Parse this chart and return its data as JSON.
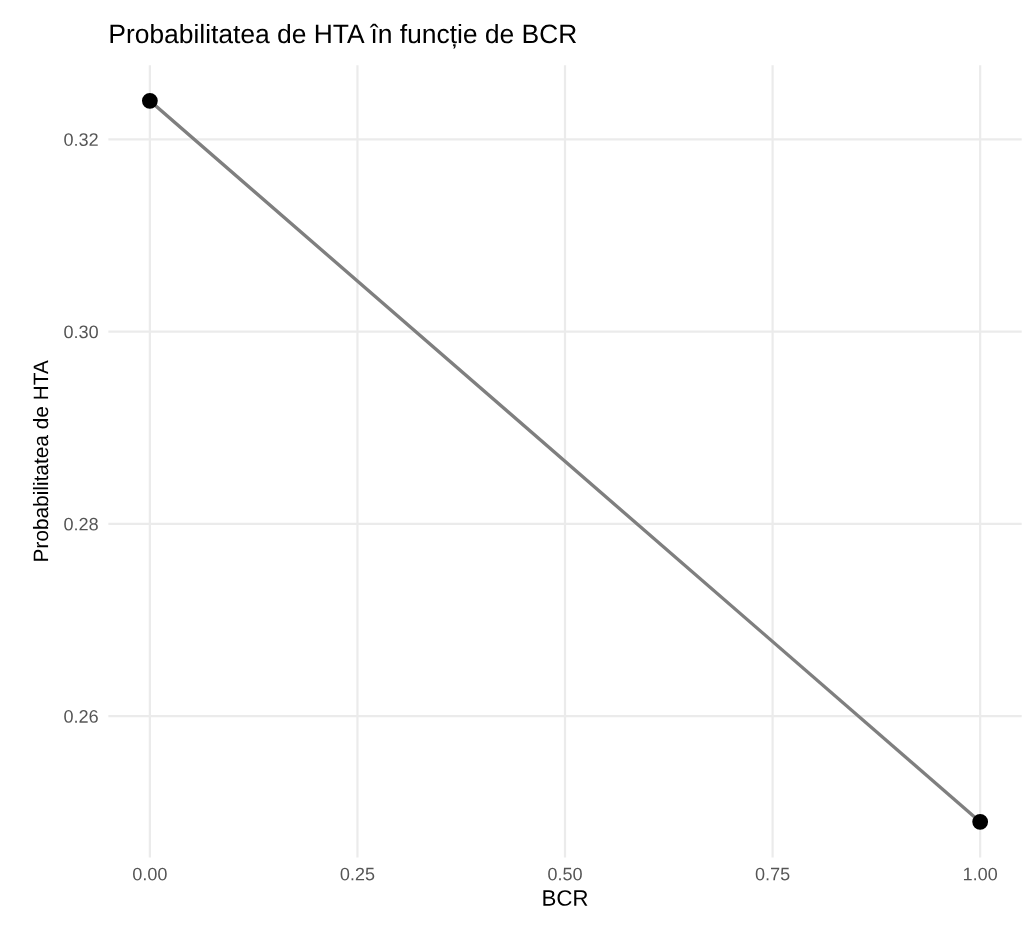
{
  "chart_data": {
    "type": "line",
    "title": "Probabilitatea de HTA în funcție de BCR",
    "xlabel": "BCR",
    "ylabel": "Probabilitatea de HTA",
    "x": [
      0,
      1
    ],
    "series": [
      {
        "color": "#7f7f7f",
        "values": [
          0.324,
          0.249
        ]
      }
    ],
    "marker": "circle",
    "xlim": [
      -0.05,
      1.05
    ],
    "xticks": [
      {
        "value": 0,
        "label": "0.00"
      },
      0.25,
      {
        "value": 0.5,
        "label": "0.50"
      },
      0.75,
      {
        "value": 1,
        "label": "1.00"
      }
    ],
    "ylim": [
      0.2453,
      0.3277
    ],
    "yticks": [
      0.26,
      0.28,
      {
        "value": 0.3,
        "label": "0.30"
      },
      0.32
    ],
    "grid": true
  }
}
